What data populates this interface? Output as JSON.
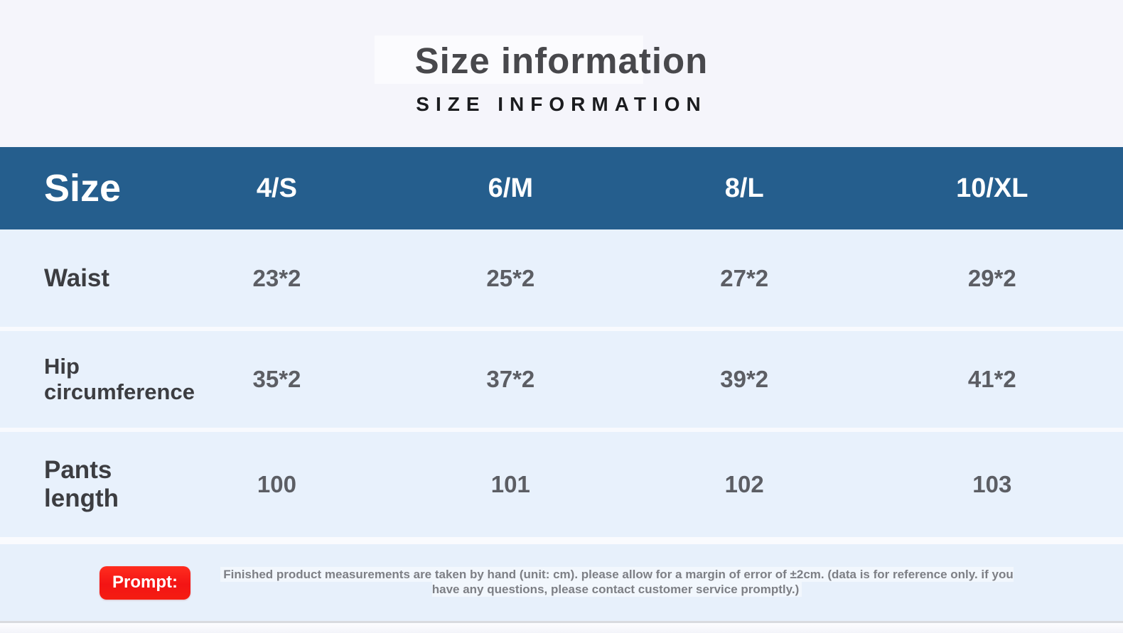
{
  "page": {
    "title": "Size information",
    "subtitle": "SIZE INFORMATION"
  },
  "table": {
    "header": {
      "label": "Size",
      "columns": [
        "4/S",
        "6/M",
        "8/L",
        "10/XL"
      ]
    },
    "rows": [
      {
        "label": "Waist",
        "values": [
          "23*2",
          "25*2",
          "27*2",
          "29*2"
        ]
      },
      {
        "label": "Hip circumference",
        "values": [
          "35*2",
          "37*2",
          "39*2",
          "41*2"
        ]
      },
      {
        "label": "Pants length",
        "values": [
          "100",
          "101",
          "102",
          "103"
        ]
      }
    ]
  },
  "note": {
    "badge_label": "Prompt:",
    "text": "Finished product measurements are taken by hand (unit: cm). please allow for a margin of error of ±2cm. (data is for reference only. if you have any questions, please contact customer service promptly.)"
  },
  "colors": {
    "page_background": "#f5f5fb",
    "table_header_background": "#255e8d",
    "table_header_text": "#ffffff",
    "row_background": "#e8f1fc",
    "row_label_text": "#3c3d41",
    "cell_value_text": "#5c5e64",
    "badge_background": "#f51d15",
    "badge_text": "#ffffff",
    "note_text": "#7d7f85"
  },
  "chart_data": {
    "type": "table",
    "title": "Size information",
    "subtitle": "SIZE INFORMATION",
    "unit": "cm",
    "columns": [
      "Size",
      "4/S",
      "6/M",
      "8/L",
      "10/XL"
    ],
    "rows": [
      [
        "Waist",
        "23*2",
        "25*2",
        "27*2",
        "29*2"
      ],
      [
        "Hip circumference",
        "35*2",
        "37*2",
        "39*2",
        "41*2"
      ],
      [
        "Pants length",
        "100",
        "101",
        "102",
        "103"
      ]
    ],
    "footnote": "Finished product measurements are taken by hand (unit: cm). please allow for a margin of error of ±2cm. (data is for reference only. if you have any questions, please contact customer service promptly.)"
  }
}
